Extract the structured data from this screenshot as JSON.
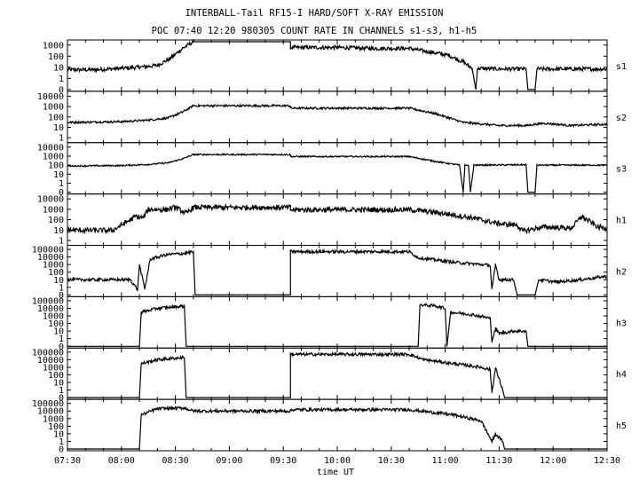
{
  "chart_data": {
    "type": "line",
    "title": "INTERBALL-Tail RF15-I HARD/SOFT X-RAY EMISSION",
    "subtitle": "POC 07:40 12:20 980305  COUNT RATE IN CHANNELS s1-s3, h1-h5",
    "xlabel": "time UT",
    "x_ticks": [
      "07:30",
      "08:00",
      "08:30",
      "09:00",
      "09:30",
      "10:00",
      "10:30",
      "11:00",
      "11:30",
      "12:00",
      "12:30"
    ],
    "x_range_minutes": [
      450,
      750
    ],
    "y_scale": "log",
    "panels": [
      {
        "name": "s1",
        "y_ticks": [
          "1000",
          "100",
          "10",
          "1",
          "0"
        ],
        "y_range": [
          0.1,
          2000
        ],
        "noise": 0.18,
        "points": [
          [
            450,
            6
          ],
          [
            465,
            6
          ],
          [
            480,
            8
          ],
          [
            490,
            10
          ],
          [
            500,
            15
          ],
          [
            507,
            60
          ],
          [
            514,
            500
          ],
          [
            520,
            2000
          ],
          [
            560,
            2000
          ],
          [
            574,
            2000
          ],
          [
            574,
            600
          ],
          [
            600,
            600
          ],
          [
            620,
            500
          ],
          [
            640,
            500
          ],
          [
            662,
            120
          ],
          [
            670,
            30
          ],
          [
            675,
            8
          ],
          [
            677,
            0.1
          ],
          [
            678,
            8
          ],
          [
            690,
            7
          ],
          [
            705,
            7
          ],
          [
            706,
            0.1
          ],
          [
            710,
            0.1
          ],
          [
            711,
            7
          ],
          [
            750,
            7
          ]
        ]
      },
      {
        "name": "s2",
        "y_ticks": [
          "10000",
          "1000",
          "100",
          "10",
          "1"
        ],
        "y_range": [
          0.5,
          20000
        ],
        "noise": 0.1,
        "points": [
          [
            450,
            30
          ],
          [
            480,
            35
          ],
          [
            495,
            50
          ],
          [
            506,
            80
          ],
          [
            514,
            300
          ],
          [
            520,
            1200
          ],
          [
            574,
            1200
          ],
          [
            574,
            700
          ],
          [
            600,
            700
          ],
          [
            640,
            700
          ],
          [
            655,
            200
          ],
          [
            670,
            30
          ],
          [
            690,
            15
          ],
          [
            705,
            15
          ],
          [
            715,
            25
          ],
          [
            730,
            15
          ],
          [
            750,
            20
          ]
        ]
      },
      {
        "name": "s3",
        "y_ticks": [
          "10000",
          "1000",
          "100",
          "10",
          "1",
          "0"
        ],
        "y_range": [
          0.1,
          20000
        ],
        "noise": 0.08,
        "points": [
          [
            450,
            80
          ],
          [
            480,
            90
          ],
          [
            495,
            120
          ],
          [
            506,
            180
          ],
          [
            514,
            500
          ],
          [
            520,
            1500
          ],
          [
            574,
            1500
          ],
          [
            574,
            900
          ],
          [
            640,
            900
          ],
          [
            655,
            250
          ],
          [
            668,
            100
          ],
          [
            670,
            0.1
          ],
          [
            671,
            100
          ],
          [
            673,
            100
          ],
          [
            674,
            0.1
          ],
          [
            676,
            100
          ],
          [
            705,
            110
          ],
          [
            706,
            0.1
          ],
          [
            710,
            0.1
          ],
          [
            711,
            100
          ],
          [
            750,
            100
          ]
        ]
      },
      {
        "name": "h1",
        "y_ticks": [
          "10000",
          "1000",
          "100",
          "10",
          "1"
        ],
        "y_range": [
          0.5,
          20000
        ],
        "noise": 0.25,
        "points": [
          [
            450,
            10
          ],
          [
            475,
            9
          ],
          [
            480,
            30
          ],
          [
            488,
            200
          ],
          [
            492,
            150
          ],
          [
            495,
            1000
          ],
          [
            505,
            900
          ],
          [
            510,
            1500
          ],
          [
            516,
            400
          ],
          [
            520,
            1500
          ],
          [
            574,
            1500
          ],
          [
            574,
            900
          ],
          [
            640,
            900
          ],
          [
            655,
            500
          ],
          [
            675,
            150
          ],
          [
            690,
            40
          ],
          [
            700,
            30
          ],
          [
            703,
            8
          ],
          [
            715,
            20
          ],
          [
            730,
            15
          ],
          [
            736,
            200
          ],
          [
            745,
            20
          ],
          [
            750,
            15
          ]
        ]
      },
      {
        "name": "h2",
        "y_ticks": [
          "100000",
          "10000",
          "1000",
          "100",
          "10",
          "1",
          "0"
        ],
        "y_range": [
          0.1,
          200000
        ],
        "noise": 0.2,
        "points": [
          [
            450,
            10
          ],
          [
            485,
            10
          ],
          [
            489,
            0.5
          ],
          [
            490,
            1000
          ],
          [
            493,
            0.6
          ],
          [
            496,
            5000
          ],
          [
            505,
            20000
          ],
          [
            515,
            30000
          ],
          [
            520,
            50000
          ],
          [
            521,
            0.1
          ],
          [
            524,
            0.1
          ],
          [
            574,
            0.1
          ],
          [
            574,
            50000
          ],
          [
            640,
            50000
          ],
          [
            645,
            8000
          ],
          [
            665,
            2000
          ],
          [
            685,
            800
          ],
          [
            686,
            0.5
          ],
          [
            688,
            1000
          ],
          [
            690,
            10
          ],
          [
            698,
            10
          ],
          [
            700,
            0.1
          ],
          [
            710,
            0.1
          ],
          [
            712,
            10
          ],
          [
            722,
            5
          ],
          [
            735,
            10
          ],
          [
            745,
            20
          ],
          [
            750,
            30
          ]
        ]
      },
      {
        "name": "h3",
        "y_ticks": [
          "100000",
          "10000",
          "1000",
          "100",
          "10",
          "1",
          "0"
        ],
        "y_range": [
          0.1,
          200000
        ],
        "noise": 0.2,
        "points": [
          [
            450,
            0.1
          ],
          [
            490,
            0.1
          ],
          [
            491,
            3000
          ],
          [
            500,
            10000
          ],
          [
            515,
            20000
          ],
          [
            516,
            0.1
          ],
          [
            645,
            0.1
          ],
          [
            646,
            30000
          ],
          [
            655,
            20000
          ],
          [
            660,
            10000
          ],
          [
            661,
            0.1
          ],
          [
            663,
            3000
          ],
          [
            675,
            1500
          ],
          [
            685,
            500
          ],
          [
            686,
            0.5
          ],
          [
            688,
            20
          ],
          [
            690,
            5
          ],
          [
            698,
            10
          ],
          [
            705,
            10
          ],
          [
            706,
            0.1
          ],
          [
            750,
            0.1
          ]
        ]
      },
      {
        "name": "h4",
        "y_ticks": [
          "100000",
          "10000",
          "1000",
          "100",
          "10",
          "1",
          "0"
        ],
        "y_range": [
          0.1,
          200000
        ],
        "noise": 0.2,
        "points": [
          [
            450,
            0.1
          ],
          [
            490,
            0.1
          ],
          [
            491,
            3000
          ],
          [
            500,
            10000
          ],
          [
            515,
            20000
          ],
          [
            516,
            0.1
          ],
          [
            574,
            0.1
          ],
          [
            574,
            50000
          ],
          [
            640,
            50000
          ],
          [
            648,
            10000
          ],
          [
            665,
            3000
          ],
          [
            680,
            1000
          ],
          [
            685,
            500
          ],
          [
            686,
            0.5
          ],
          [
            688,
            800
          ],
          [
            692,
            1
          ],
          [
            693,
            0.1
          ],
          [
            750,
            0.1
          ]
        ]
      },
      {
        "name": "h5",
        "y_ticks": [
          "100000",
          "10000",
          "1000",
          "100",
          "10",
          "1",
          "0"
        ],
        "y_range": [
          0.1,
          200000
        ],
        "noise": 0.2,
        "points": [
          [
            450,
            0.1
          ],
          [
            490,
            0.1
          ],
          [
            491,
            3000
          ],
          [
            500,
            20000
          ],
          [
            515,
            25000
          ],
          [
            520,
            10000
          ],
          [
            574,
            10000
          ],
          [
            574,
            15000
          ],
          [
            640,
            15000
          ],
          [
            650,
            8000
          ],
          [
            665,
            3000
          ],
          [
            680,
            500
          ],
          [
            686,
            1
          ],
          [
            688,
            10
          ],
          [
            692,
            1
          ],
          [
            693,
            0.1
          ],
          [
            750,
            0.1
          ]
        ]
      }
    ]
  }
}
